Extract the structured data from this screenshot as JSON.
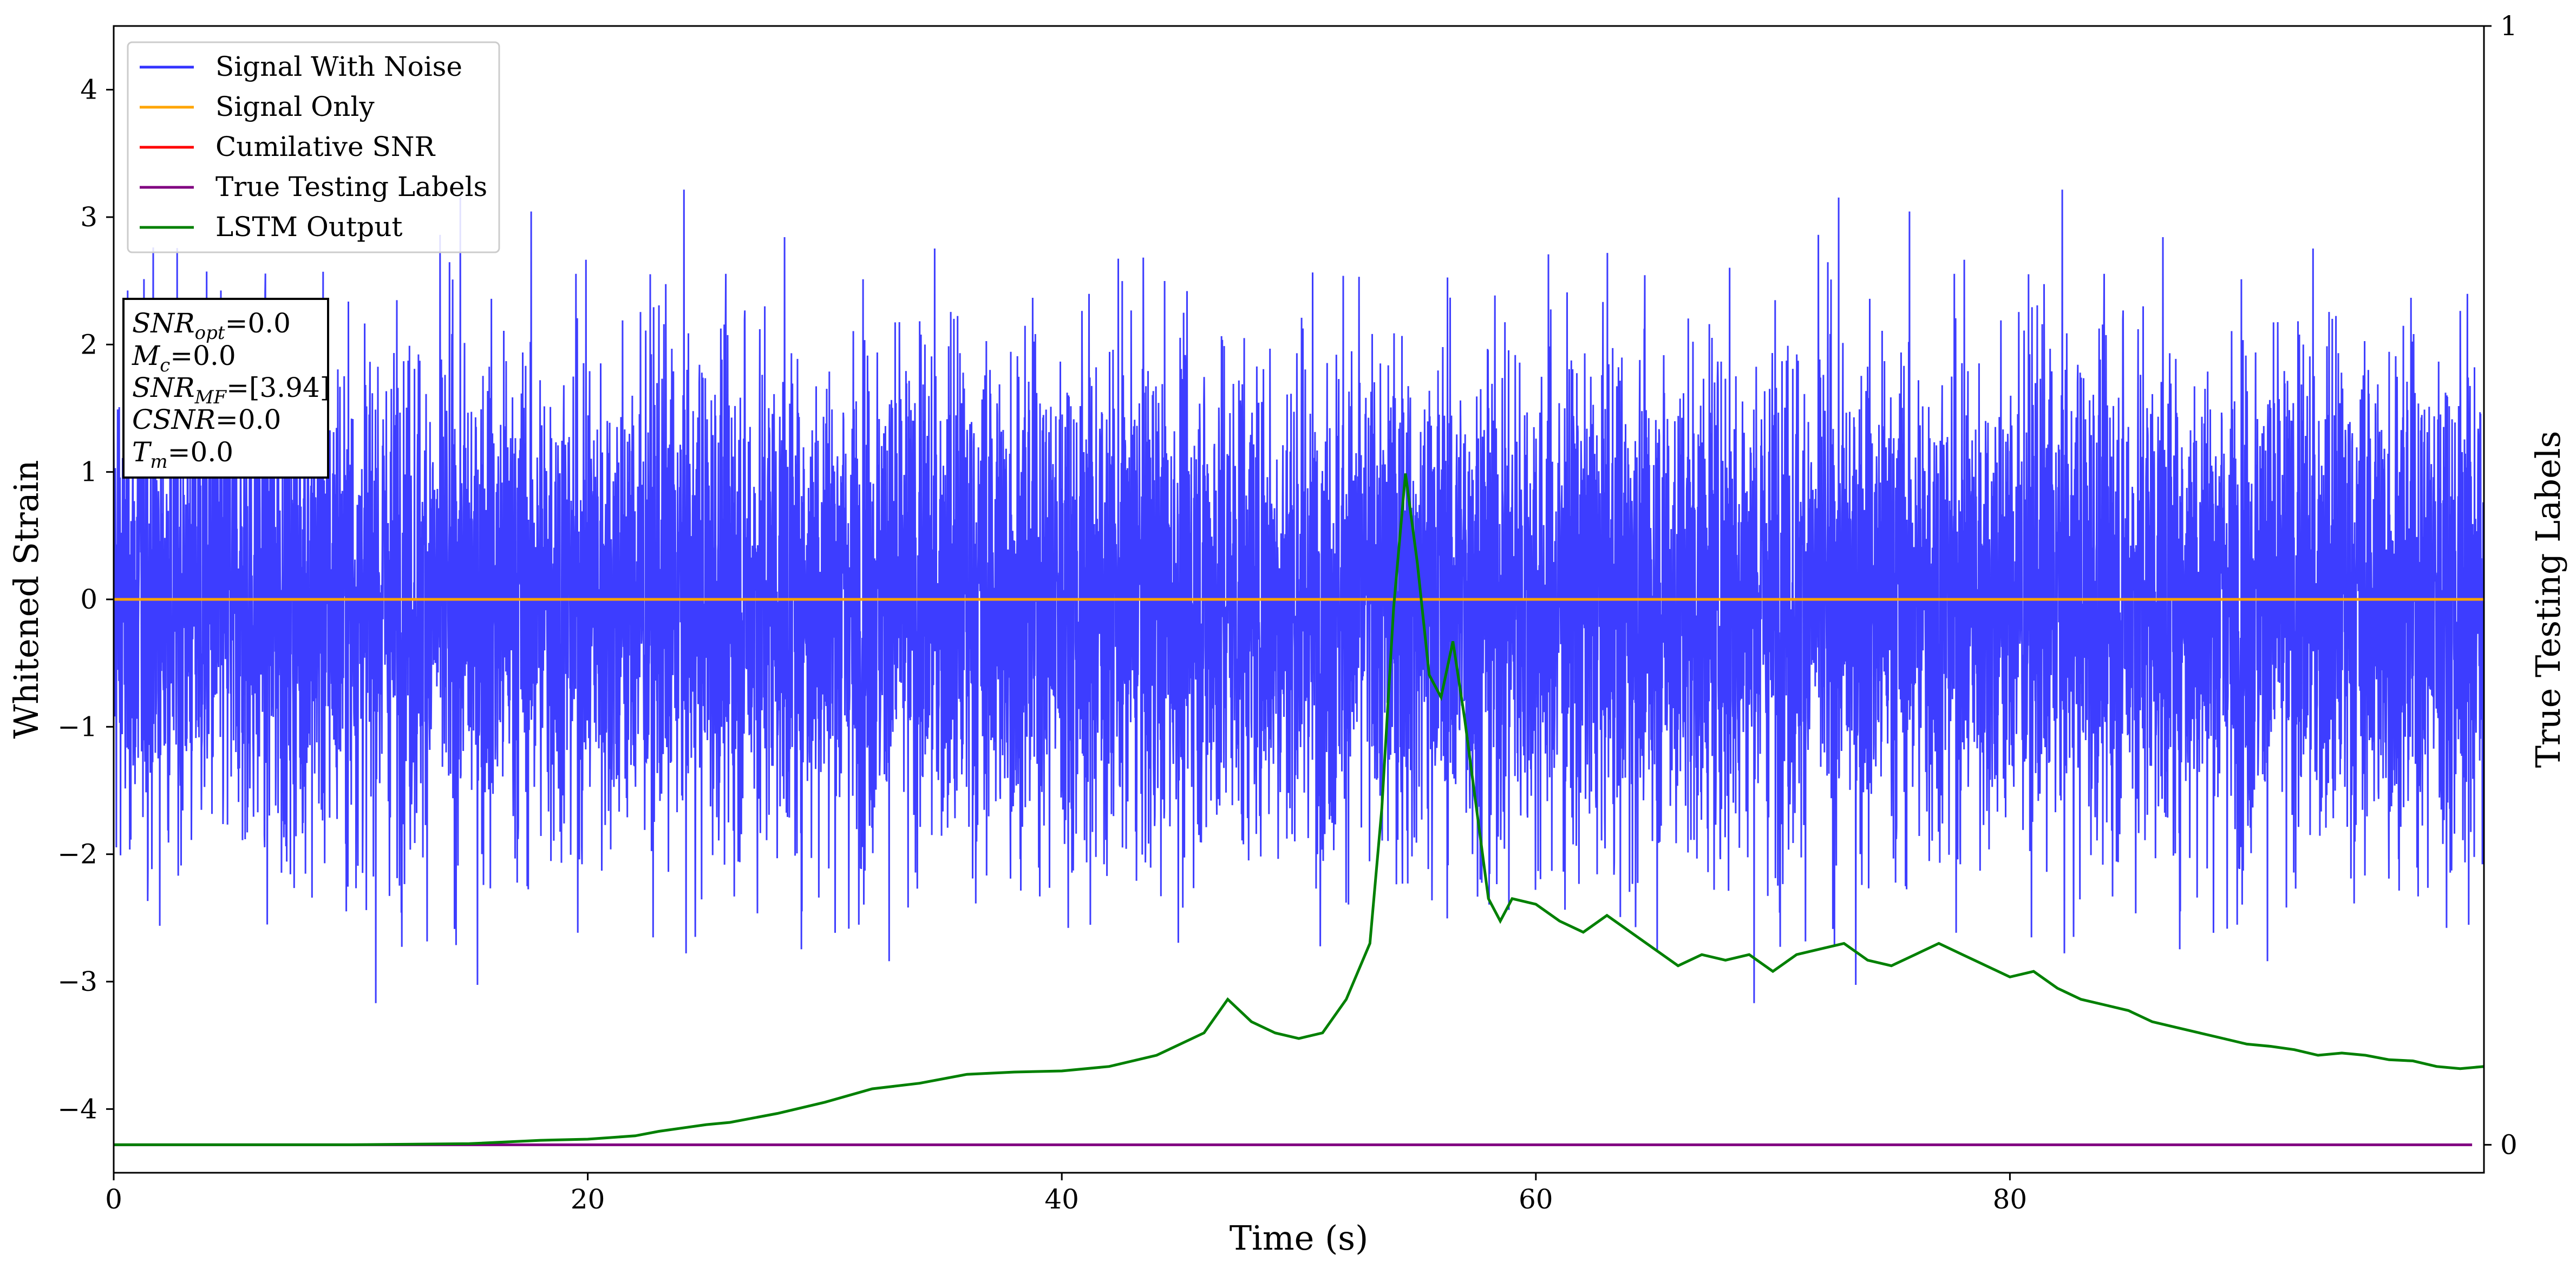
{
  "chart_data": {
    "type": "line",
    "xlabel": "Time (s)",
    "ylabel": "Whitened Strain",
    "y2label": "True Testing Labels",
    "xlim": [
      0,
      100
    ],
    "ylim": [
      -4.5,
      4.5
    ],
    "y2lim": [
      -0.025,
      1
    ],
    "x_ticks": [
      "0",
      "20",
      "40",
      "60",
      "80"
    ],
    "y_ticks": [
      "-4",
      "-3",
      "-2",
      "-1",
      "0",
      "1",
      "2",
      "3",
      "4"
    ],
    "y2_ticks": [
      "0",
      "1"
    ],
    "grid": false,
    "legend_position": "top-left",
    "legend": [
      {
        "name": "Signal With Noise",
        "color": "#3333ff"
      },
      {
        "name": "Signal Only",
        "color": "#ffa500"
      },
      {
        "name": "Cumilative SNR",
        "color": "#ff0000"
      },
      {
        "name": "True Testing Labels",
        "color": "#800080"
      },
      {
        "name": "LSTM Output",
        "color": "#008000"
      }
    ],
    "info_box": {
      "snr_opt": {
        "base": "SNR",
        "sub": "opt",
        "value": "=0.0"
      },
      "mc": {
        "base": "M",
        "sub": "c",
        "value": "=0.0"
      },
      "snr_mf": {
        "base": "SNR",
        "sub": "MF",
        "value": "=[3.94]"
      },
      "csnr": {
        "base": "CSNR",
        "value": "=0.0"
      },
      "tm": {
        "base": "T",
        "sub": "m",
        "value": "=0.0"
      }
    },
    "series": [
      {
        "name": "Signal With Noise",
        "color": "#3333ff",
        "description": "dense gaussian noise spanning about -3.8 to 4.1",
        "noise_band": {
          "low_typical": -2.0,
          "high_typical": 2.2,
          "min": -4.0,
          "max": 4.12
        }
      },
      {
        "name": "Signal Only",
        "color": "#ffa500",
        "x": [
          0,
          100
        ],
        "y": [
          0,
          0
        ]
      },
      {
        "name": "True Testing Labels",
        "color": "#800080",
        "axis": "right",
        "x": [
          0,
          99.5
        ],
        "y": [
          0,
          0
        ]
      },
      {
        "name": "LSTM Output",
        "color": "#008000",
        "axis": "right",
        "x": [
          0,
          10,
          15,
          18,
          20,
          22,
          23,
          24,
          25,
          26,
          28,
          30,
          32,
          34,
          36,
          38,
          40,
          42,
          44,
          45,
          46,
          47,
          48,
          49,
          50,
          51,
          52,
          53,
          53.5,
          54,
          54.5,
          55,
          55.5,
          56,
          56.5,
          57,
          57.5,
          58,
          58.5,
          59,
          60,
          61,
          62,
          63,
          64,
          65,
          66,
          67,
          68,
          69,
          70,
          71,
          72,
          73,
          74,
          75,
          76,
          77,
          78,
          79,
          80,
          81,
          82,
          83,
          84,
          85,
          86,
          87,
          88,
          89,
          90,
          91,
          92,
          93,
          94,
          95,
          96,
          97,
          98,
          99,
          100
        ],
        "y": [
          0.0,
          0.0,
          0.001,
          0.004,
          0.005,
          0.008,
          0.012,
          0.015,
          0.018,
          0.02,
          0.028,
          0.038,
          0.05,
          0.055,
          0.063,
          0.065,
          0.066,
          0.07,
          0.08,
          0.09,
          0.1,
          0.13,
          0.11,
          0.1,
          0.095,
          0.1,
          0.13,
          0.18,
          0.3,
          0.48,
          0.6,
          0.52,
          0.42,
          0.4,
          0.45,
          0.38,
          0.3,
          0.22,
          0.2,
          0.22,
          0.215,
          0.2,
          0.19,
          0.205,
          0.19,
          0.175,
          0.16,
          0.17,
          0.165,
          0.17,
          0.155,
          0.17,
          0.175,
          0.18,
          0.165,
          0.16,
          0.17,
          0.18,
          0.17,
          0.16,
          0.15,
          0.155,
          0.14,
          0.13,
          0.125,
          0.12,
          0.11,
          0.105,
          0.1,
          0.095,
          0.09,
          0.088,
          0.085,
          0.08,
          0.082,
          0.08,
          0.076,
          0.075,
          0.07,
          0.068,
          0.07
        ]
      }
    ]
  }
}
